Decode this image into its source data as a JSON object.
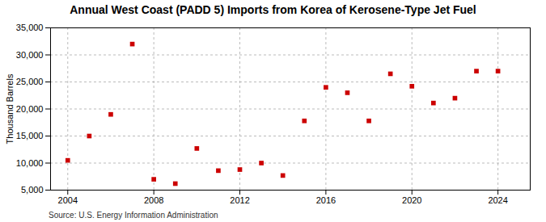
{
  "chart_data": {
    "type": "scatter",
    "title": "Annual West Coast (PADD 5) Imports from Korea of Kerosene-Type Jet Fuel",
    "ylabel": "Thousand Barrels",
    "source": "Source: U.S. Energy Information Administration",
    "x": [
      2004,
      2005,
      2006,
      2007,
      2008,
      2009,
      2010,
      2011,
      2012,
      2013,
      2014,
      2015,
      2016,
      2017,
      2018,
      2019,
      2020,
      2021,
      2022,
      2023,
      2024
    ],
    "values": [
      10500,
      15000,
      19000,
      32000,
      7000,
      6200,
      12700,
      8600,
      8800,
      10000,
      7700,
      17800,
      24000,
      23000,
      17800,
      26500,
      24200,
      21100,
      22000,
      27000,
      27000
    ],
    "color": "#cc0000",
    "marker": "square",
    "xlim": [
      2003.2,
      2025.5
    ],
    "xticks": [
      2004,
      2008,
      2012,
      2016,
      2020,
      2024
    ],
    "ylim": [
      5000,
      35000
    ],
    "yticks": [
      {
        "value": 5000,
        "label": "5,000"
      },
      {
        "value": 10000,
        "label": "10,000"
      },
      {
        "value": 15000,
        "label": "15,000"
      },
      {
        "value": 20000,
        "label": "20,000"
      },
      {
        "value": 25000,
        "label": "25,000"
      },
      {
        "value": 30000,
        "label": "30,000"
      },
      {
        "value": 35000,
        "label": "35,000"
      }
    ],
    "grid": true
  }
}
